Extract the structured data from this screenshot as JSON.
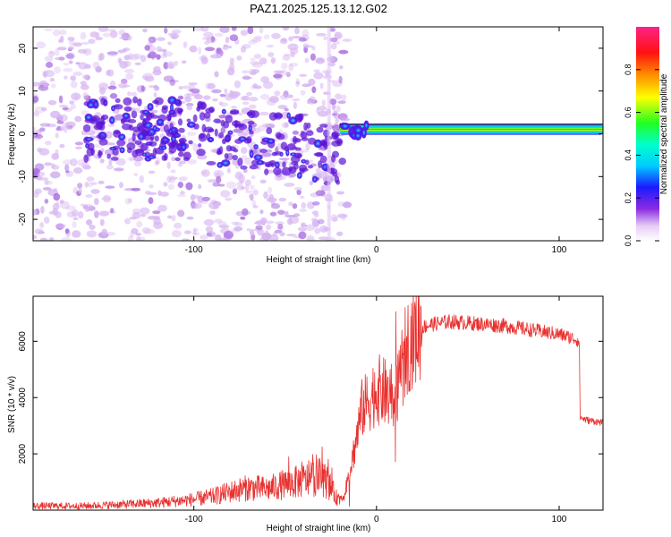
{
  "title": "PAZ1.2025.125.13.12.G02",
  "chart_data": [
    {
      "type": "heatmap",
      "xlabel": "Height of straight line (km)",
      "ylabel": "Frequency (Hz)",
      "xlim": [
        -188,
        124
      ],
      "ylim": [
        -25,
        25
      ],
      "xticks": [
        -100,
        0,
        100
      ],
      "xtick_labels": [
        "-100",
        "0",
        "100"
      ],
      "yticks": [
        -20,
        -10,
        0,
        10,
        20
      ],
      "ytick_labels": [
        "-20",
        "-10",
        "0",
        "10",
        "20"
      ],
      "grid": false,
      "colorbar": {
        "label": "Normalized spectral amplitude",
        "range": [
          0,
          1
        ],
        "ticks": [
          0.0,
          0.2,
          0.4,
          0.6,
          0.8
        ],
        "tick_labels": [
          "0.0",
          "0.2",
          "0.4",
          "0.6",
          "0.8"
        ],
        "colormap": "rainbow (white-violet-blue-cyan-green-yellow-orange-red-magenta)"
      },
      "features": {
        "stable_tone": {
          "x_from": -20,
          "x_to": 124,
          "frequency_hz": 1
        },
        "dispersed_region": {
          "x_from": -188,
          "x_to": -20,
          "frequency_range_hz": [
            -25,
            25
          ]
        },
        "ridge_center_hz": [
          {
            "x": -100,
            "y": 1
          },
          {
            "x": -80,
            "y": -1
          },
          {
            "x": -60,
            "y": -2
          },
          {
            "x": -40,
            "y": -3
          },
          {
            "x": -25,
            "y": -5
          }
        ]
      }
    },
    {
      "type": "line",
      "xlabel": "Height of straight line (km)",
      "ylabel": "SNR (10 * v/v)",
      "xlim": [
        -188,
        124
      ],
      "ylim": [
        0,
        7600
      ],
      "xticks": [
        -100,
        0,
        100
      ],
      "xtick_labels": [
        "-100",
        "0",
        "100"
      ],
      "yticks": [
        2000,
        4000,
        6000
      ],
      "ytick_labels": [
        "2000",
        "4000",
        "6000"
      ],
      "grid": false,
      "series": [
        {
          "color": "#e8312f",
          "x": [
            -188,
            -160,
            -140,
            -120,
            -100,
            -90,
            -80,
            -70,
            -60,
            -50,
            -40,
            -30,
            -25,
            -22,
            -18,
            -12,
            -8,
            -4,
            0,
            4,
            8,
            12,
            16,
            20,
            25,
            30,
            35,
            40,
            50,
            60,
            70,
            80,
            90,
            100,
            108,
            111,
            111.5,
            115,
            120,
            124
          ],
          "y": [
            150,
            150,
            200,
            260,
            380,
            480,
            650,
            800,
            750,
            920,
            1050,
            1200,
            800,
            450,
            400,
            2200,
            3600,
            3900,
            4300,
            4200,
            4000,
            4300,
            5700,
            6200,
            6500,
            6600,
            6650,
            6700,
            6650,
            6600,
            6550,
            6450,
            6350,
            6250,
            6100,
            6000,
            3300,
            3200,
            3150,
            3100
          ]
        }
      ]
    }
  ]
}
